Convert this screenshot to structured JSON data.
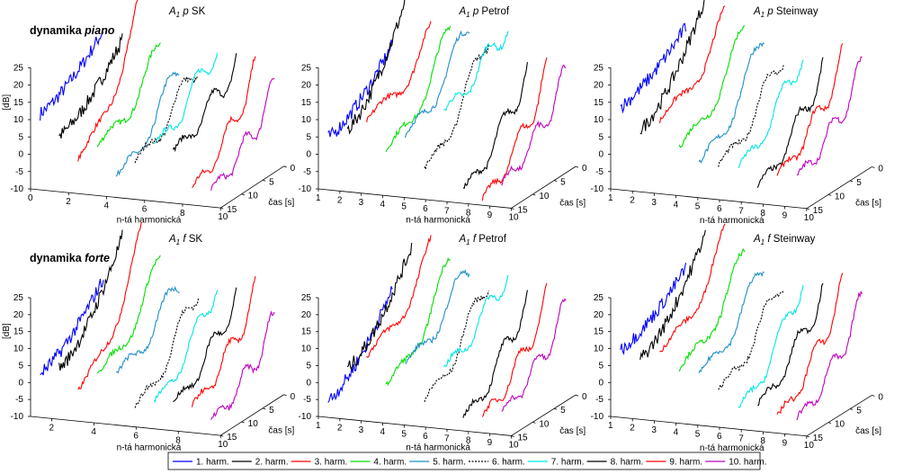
{
  "figure": {
    "row_labels": [
      {
        "prefix": "dynamika ",
        "dynamic": "piano"
      },
      {
        "prefix": "dynamika ",
        "dynamic": "forte"
      }
    ],
    "legend": [
      {
        "label": "1. harm.",
        "color": "#0000ff",
        "dash": false
      },
      {
        "label": "2. harm.",
        "color": "#000000",
        "dash": false
      },
      {
        "label": "3. harm.",
        "color": "#ff0000",
        "dash": false
      },
      {
        "label": "4. harm.",
        "color": "#00e000",
        "dash": false
      },
      {
        "label": "5. harm.",
        "color": "#1f8fc8",
        "dash": false
      },
      {
        "label": "6. harm.",
        "color": "#000000",
        "dash": true
      },
      {
        "label": "7. harm.",
        "color": "#00e6e6",
        "dash": false
      },
      {
        "label": "8. harm.",
        "color": "#000000",
        "dash": false
      },
      {
        "label": "9. harm.",
        "color": "#ff0000",
        "dash": false
      },
      {
        "label": "10. harm.",
        "color": "#c000c0",
        "dash": false
      }
    ]
  },
  "chart_data": [
    {
      "type": "line",
      "title_note": "A",
      "title_sub": "1",
      "dyn": "p",
      "instrument": "SK",
      "xlabel": "n-tá harmonická",
      "ylabel": "[dB]",
      "tlabel": "čas [s]",
      "xticks": [
        0,
        2,
        4,
        6,
        8,
        10
      ],
      "yticks": [
        -10,
        -5,
        0,
        5,
        10,
        15,
        20,
        25
      ],
      "tticks": [
        0,
        5,
        10,
        15
      ],
      "xlim": [
        0,
        10
      ],
      "ylim": [
        -10,
        25
      ],
      "tlim": [
        0,
        15
      ],
      "grid": false,
      "series_start_db": [
        12,
        6,
        0,
        4,
        -4,
        1,
        6,
        5,
        -5,
        -5
      ],
      "series_peak_db": [
        24,
        22,
        34,
        20,
        16,
        18,
        24,
        19,
        17,
        12
      ]
    },
    {
      "type": "line",
      "title_note": "A",
      "title_sub": "1",
      "dyn": "p",
      "instrument": "Petrof",
      "xlabel": "n-tá harmonická",
      "ylabel": "",
      "tlabel": "čas [s]",
      "xticks": [
        1,
        2,
        3,
        4,
        5,
        6,
        7,
        8,
        9,
        10
      ],
      "yticks": [
        -10,
        -5,
        0,
        5,
        10,
        15,
        20,
        25
      ],
      "tticks": [
        0,
        5,
        10,
        15
      ],
      "xlim": [
        1,
        10
      ],
      "ylim": [
        -10,
        25
      ],
      "tlim": [
        0,
        15
      ],
      "grid": false,
      "series_start_db": [
        5,
        8,
        11,
        3,
        8,
        -1,
        16,
        -6,
        -8,
        -3
      ],
      "series_peak_db": [
        20,
        39,
        23,
        25,
        28,
        27,
        30,
        17,
        16,
        16
      ]
    },
    {
      "type": "line",
      "title_note": "A",
      "title_sub": "1",
      "dyn": "p",
      "instrument": "Steinway",
      "xlabel": "n-tá harmonická",
      "ylabel": "",
      "tlabel": "čas [s]",
      "xticks": [
        1,
        2,
        3,
        4,
        5,
        6,
        7,
        8,
        9,
        10
      ],
      "yticks": [
        -10,
        -5,
        0,
        5,
        10,
        15,
        20,
        25
      ],
      "tticks": [
        0,
        5,
        10,
        15
      ],
      "xlim": [
        1,
        10
      ],
      "ylim": [
        -10,
        25
      ],
      "tlim": [
        0,
        15
      ],
      "grid": false,
      "series_start_db": [
        14,
        8,
        11,
        4,
        0,
        0,
        0,
        -5,
        -1,
        -1
      ],
      "series_peak_db": [
        25,
        34,
        28,
        25,
        25,
        21,
        22,
        18,
        20,
        18
      ]
    },
    {
      "type": "line",
      "title_note": "A",
      "title_sub": "1",
      "dyn": "f",
      "instrument": "SK",
      "xlabel": "n-tá harmonická",
      "ylabel": "[dB]",
      "tlabel": "čas [s]",
      "xticks": [
        2,
        4,
        6,
        8,
        10
      ],
      "yticks": [
        -10,
        -5,
        0,
        5,
        10,
        15,
        20,
        25
      ],
      "tticks": [
        0,
        5,
        10,
        15
      ],
      "xlim": [
        1,
        10
      ],
      "ylim": [
        -10,
        25
      ],
      "tlim": [
        0,
        15
      ],
      "grid": false,
      "series_start_db": [
        3,
        5,
        -1,
        4,
        5,
        -4,
        -2,
        -2,
        -2,
        -6
      ],
      "series_peak_db": [
        19,
        32,
        32,
        25,
        20,
        20,
        22,
        18,
        19,
        11
      ]
    },
    {
      "type": "line",
      "title_note": "A",
      "title_sub": "1",
      "dyn": "f",
      "instrument": "Petrof",
      "xlabel": "n-tá harmonická",
      "ylabel": "",
      "tlabel": "čas [s]",
      "xticks": [
        1,
        2,
        3,
        4,
        5,
        6,
        7,
        8,
        9,
        10
      ],
      "yticks": [
        -10,
        -5,
        0,
        5,
        10,
        15,
        20,
        25
      ],
      "tticks": [
        0,
        5,
        10,
        15
      ],
      "xlim": [
        1,
        10
      ],
      "ylim": [
        -10,
        25
      ],
      "tlim": [
        0,
        15
      ],
      "grid": false,
      "series_start_db": [
        -5,
        5,
        9,
        1,
        8,
        -2,
        8,
        -6,
        -5,
        -3
      ],
      "series_peak_db": [
        16,
        29,
        28,
        25,
        25,
        23,
        25,
        18,
        17,
        15
      ]
    },
    {
      "type": "line",
      "title_note": "A",
      "title_sub": "1",
      "dyn": "f",
      "instrument": "Steinway",
      "xlabel": "n-tá harmonická",
      "ylabel": "",
      "tlabel": "čas [s]",
      "xticks": [
        1,
        2,
        3,
        4,
        5,
        6,
        7,
        8,
        9,
        10
      ],
      "yticks": [
        -10,
        -5,
        0,
        5,
        10,
        15,
        20,
        25
      ],
      "tticks": [
        0,
        5,
        10,
        15
      ],
      "xlim": [
        1,
        10
      ],
      "ylim": [
        -10,
        25
      ],
      "tlim": [
        0,
        15
      ],
      "grid": false,
      "series_start_db": [
        10,
        8,
        10,
        6,
        5,
        1,
        -4,
        -2,
        -5,
        -5
      ],
      "series_peak_db": [
        22,
        33,
        32,
        27,
        25,
        23,
        23,
        20,
        21,
        17
      ]
    }
  ]
}
